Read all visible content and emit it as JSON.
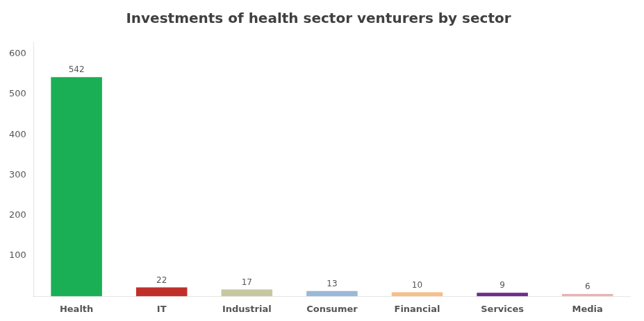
{
  "chart_data": {
    "type": "bar",
    "title": "Investments of health sector venturers by sector",
    "categories": [
      "Health",
      "IT",
      "Industrial",
      "Consumer",
      "Financial",
      "Services",
      "Media"
    ],
    "values": [
      542,
      22,
      17,
      13,
      10,
      9,
      6
    ],
    "colors": [
      "#1aaf54",
      "#c0302a",
      "#c8c8a0",
      "#9ab8d8",
      "#f5c08a",
      "#6b2d8b",
      "#e8b4b0"
    ],
    "ylim": [
      0,
      630
    ],
    "yticks": [
      100,
      200,
      300,
      400,
      500,
      600
    ],
    "grid": false,
    "data_labels": true
  }
}
